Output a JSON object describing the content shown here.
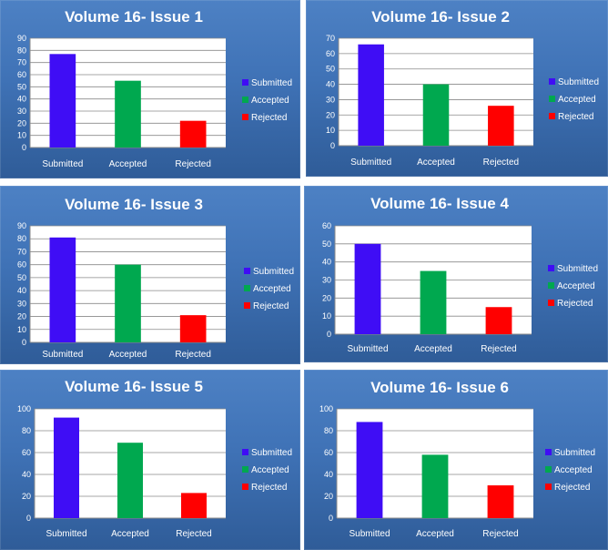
{
  "chart_data": [
    {
      "type": "bar",
      "title": "Volume 16- Issue 1",
      "categories": [
        "Submitted",
        "Accepted",
        "Rejected"
      ],
      "values": [
        77,
        55,
        22
      ],
      "colors": [
        "#3f0df5",
        "#00a84f",
        "#ff0000"
      ],
      "yticks": [
        0,
        10,
        20,
        30,
        40,
        50,
        60,
        70,
        80,
        90
      ],
      "ylim": [
        0,
        90
      ],
      "grid": true,
      "legend": [
        "Submitted",
        "Accepted",
        "Rejected"
      ],
      "legend_position": "right"
    },
    {
      "type": "bar",
      "title": "Volume 16- Issue 2",
      "categories": [
        "Submitted",
        "Accepted",
        "Rejected"
      ],
      "values": [
        66,
        40,
        26
      ],
      "colors": [
        "#3f0df5",
        "#00a84f",
        "#ff0000"
      ],
      "yticks": [
        0,
        10,
        20,
        30,
        40,
        50,
        60,
        70
      ],
      "ylim": [
        0,
        70
      ],
      "grid": true,
      "legend": [
        "Submitted",
        "Accepted",
        "Rejected"
      ],
      "legend_position": "right"
    },
    {
      "type": "bar",
      "title": "Volume 16- Issue 3",
      "categories": [
        "Submitted",
        "Accepted",
        "Rejected"
      ],
      "values": [
        81,
        60,
        21
      ],
      "colors": [
        "#3f0df5",
        "#00a84f",
        "#ff0000"
      ],
      "yticks": [
        0,
        10,
        20,
        30,
        40,
        50,
        60,
        70,
        80,
        90
      ],
      "ylim": [
        0,
        90
      ],
      "grid": true,
      "legend": [
        "Submitted",
        "Accepted",
        "Rejected"
      ],
      "legend_position": "right"
    },
    {
      "type": "bar",
      "title": "Volume 16- Issue 4",
      "categories": [
        "Submitted",
        "Accepted",
        "Rejected"
      ],
      "values": [
        50,
        35,
        15
      ],
      "colors": [
        "#3f0df5",
        "#00a84f",
        "#ff0000"
      ],
      "yticks": [
        0,
        10,
        20,
        30,
        40,
        50,
        60
      ],
      "ylim": [
        0,
        60
      ],
      "grid": true,
      "legend": [
        "Submitted",
        "Accepted",
        "Rejected"
      ],
      "legend_position": "right"
    },
    {
      "type": "bar",
      "title": "Volume 16- Issue 5",
      "categories": [
        "Submitted",
        "Accepted",
        "Rejected"
      ],
      "values": [
        92,
        69,
        23
      ],
      "colors": [
        "#3f0df5",
        "#00a84f",
        "#ff0000"
      ],
      "yticks": [
        0,
        20,
        40,
        60,
        80,
        100
      ],
      "ylim": [
        0,
        100
      ],
      "grid": true,
      "legend": [
        "Submitted",
        "Accepted",
        "Rejected"
      ],
      "legend_position": "right"
    },
    {
      "type": "bar",
      "title": "Volume 16- Issue 6",
      "categories": [
        "Submitted",
        "Accepted",
        "Rejected"
      ],
      "values": [
        88,
        58,
        30
      ],
      "colors": [
        "#3f0df5",
        "#00a84f",
        "#ff0000"
      ],
      "yticks": [
        0,
        20,
        40,
        60,
        80,
        100
      ],
      "ylim": [
        0,
        100
      ],
      "grid": true,
      "legend": [
        "Submitted",
        "Accepted",
        "Rejected"
      ],
      "legend_position": "right"
    }
  ]
}
